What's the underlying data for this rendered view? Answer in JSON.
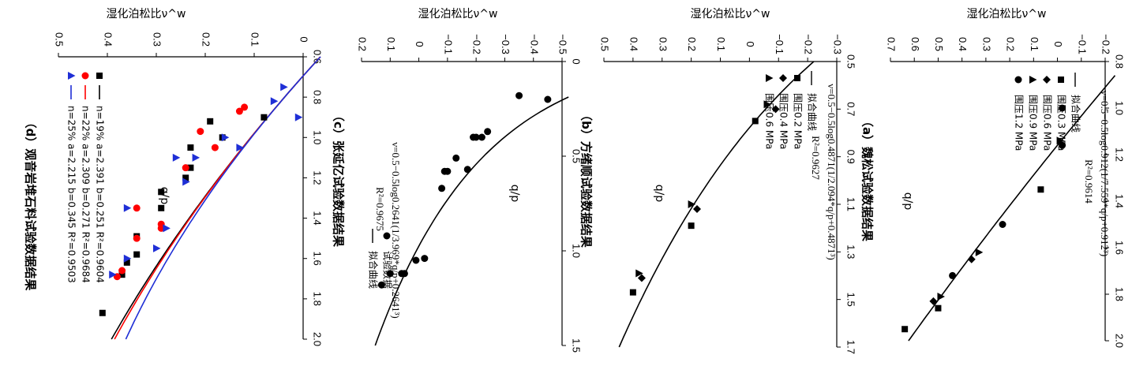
{
  "chart_data": [
    {
      "id": "a",
      "type": "scatter",
      "caption": "（a）魏松试验数据结果",
      "xlabel": "q/p",
      "ylabel": "湿化泊松比ν^w",
      "xlim": [
        0.8,
        2.0
      ],
      "xticks": [
        "0.8",
        "1.0",
        "1.2",
        "1.4",
        "1.6",
        "1.8",
        "2.0"
      ],
      "ylim": [
        -0.2,
        0.7
      ],
      "yticks": [
        "−0.2",
        "−0.1",
        "0",
        "0.1",
        "0.2",
        "0.3",
        "0.4",
        "0.5",
        "0.6",
        "0.7"
      ],
      "equation": "ν=0.5−0.5log0.912(1/7.559*q/p+0.912³)",
      "r2": "R²=0.9614",
      "legend": [
        {
          "marker": "line",
          "label": "拟合曲线"
        },
        {
          "marker": "square",
          "label": "围压0.3 MPa"
        },
        {
          "marker": "diamond",
          "label": "围压0.6 MPa"
        },
        {
          "marker": "triangle",
          "label": "围压0.9 MPa"
        },
        {
          "marker": "circle",
          "label": "围压1.2 MPa"
        }
      ],
      "series": [
        {
          "name": "围压0.3 MPa",
          "marker": "square",
          "points": [
            [
              1.35,
              0.07
            ],
            [
              1.86,
              0.5
            ],
            [
              1.95,
              0.64
            ]
          ]
        },
        {
          "name": "围压0.6 MPa",
          "marker": "diamond",
          "points": [
            [
              1.65,
              0.36
            ],
            [
              1.83,
              0.52
            ]
          ]
        },
        {
          "name": "围压0.9 MPa",
          "marker": "triangle",
          "points": [
            [
              1.14,
              -0.01
            ],
            [
              1.62,
              0.33
            ],
            [
              1.81,
              0.49
            ]
          ]
        },
        {
          "name": "围压1.2 MPa",
          "marker": "circle",
          "points": [
            [
              1.0,
              -0.02
            ],
            [
              1.16,
              -0.02
            ],
            [
              1.5,
              0.23
            ],
            [
              1.72,
              0.44
            ]
          ]
        }
      ],
      "fit": {
        "k": 7.559,
        "c": 0.912
      }
    },
    {
      "id": "b",
      "type": "scatter",
      "caption": "（b）方绪顺试验数据结果",
      "xlabel": "q/p",
      "ylabel": "湿化泊松比ν^w",
      "xlim": [
        0.5,
        1.7
      ],
      "xticks": [
        "0.5",
        "0.7",
        "0.9",
        "1.1",
        "1.3",
        "1.5",
        "1.7"
      ],
      "ylim": [
        -0.3,
        0.5
      ],
      "yticks": [
        "−0.3",
        "−0.2",
        "−0.1",
        "0",
        "0.1",
        "0.2",
        "0.3",
        "0.4",
        "0.5"
      ],
      "equation": "ν=0.5−0.5log0.4871(1/2.094*q/p+0.4871³)",
      "r2": "R²=0.9627",
      "legend": [
        {
          "marker": "line",
          "label": "拟合曲线"
        },
        {
          "marker": "square",
          "label": "围压0.2 MPa"
        },
        {
          "marker": "diamond",
          "label": "围压0.4 MPa"
        },
        {
          "marker": "triangle",
          "label": "围压0.6 MPa"
        }
      ],
      "series": [
        {
          "name": "围压0.2 MPa",
          "marker": "square",
          "points": [
            [
              0.75,
              -0.02
            ],
            [
              1.19,
              0.2
            ],
            [
              1.47,
              0.4
            ]
          ]
        },
        {
          "name": "围压0.4 MPa",
          "marker": "diamond",
          "points": [
            [
              0.7,
              -0.09
            ],
            [
              1.12,
              0.18
            ],
            [
              1.41,
              0.37
            ]
          ]
        },
        {
          "name": "围压0.6 MPa",
          "marker": "triangle",
          "points": [
            [
              0.68,
              -0.06
            ],
            [
              1.1,
              0.2
            ],
            [
              1.39,
              0.38
            ]
          ]
        }
      ],
      "fit": {
        "k": 2.094,
        "c": 0.4871
      }
    },
    {
      "id": "c",
      "type": "scatter",
      "caption": "（c）张延亿试验数据结果",
      "xlabel": "q/p",
      "ylabel": "湿化泊松比ν^w",
      "xlim": [
        0,
        1.5
      ],
      "xticks": [
        "0",
        "0.5",
        "1.0",
        "1.5"
      ],
      "ylim": [
        -0.5,
        0.2
      ],
      "yticks": [
        "−0.5",
        "−0.4",
        "−0.3",
        "−0.2",
        "−0.1",
        "0",
        "0.1",
        "0.2"
      ],
      "equation": "ν=0.5−0.5log0.2641(1/3.969*q/p+0.2641³)",
      "r2": "R²=0.9675",
      "legend": [
        {
          "marker": "circle",
          "label": "试验数据"
        },
        {
          "marker": "line",
          "label": "拟合曲线"
        }
      ],
      "series": [
        {
          "name": "试验数据",
          "marker": "circle",
          "points": [
            [
              0.2,
              -0.45
            ],
            [
              0.18,
              -0.35
            ],
            [
              0.37,
              -0.24
            ],
            [
              0.4,
              -0.22
            ],
            [
              0.4,
              -0.2
            ],
            [
              0.4,
              -0.19
            ],
            [
              0.51,
              -0.13
            ],
            [
              0.57,
              -0.17
            ],
            [
              0.58,
              -0.1
            ],
            [
              0.58,
              -0.09
            ],
            [
              0.67,
              -0.08
            ],
            [
              1.04,
              -0.02
            ],
            [
              1.05,
              0.01
            ],
            [
              1.12,
              0.05
            ],
            [
              1.12,
              0.06
            ],
            [
              1.12,
              0.1
            ],
            [
              1.18,
              0.13
            ]
          ]
        }
      ],
      "fit": {
        "k": 3.969,
        "c": 0.2641
      }
    },
    {
      "id": "d",
      "type": "scatter",
      "caption": "（d）观音岩堆石料试验数据结果",
      "xlabel": "q/p",
      "ylabel": "湿化泊松比ν^w",
      "xlim": [
        0.6,
        2.0
      ],
      "xticks": [
        "0.6",
        "0.8",
        "1.0",
        "1.2",
        "1.4",
        "1.6",
        "1.8",
        "2.0"
      ],
      "ylim": [
        0,
        0.5
      ],
      "yticks": [
        "0",
        "0.1",
        "0.2",
        "0.3",
        "0.4",
        "0.5"
      ],
      "legend": [
        {
          "marker": "square",
          "color": "#000000",
          "label": "n=19% a=2.391 b=0.251 R²=0.9604"
        },
        {
          "marker": "circle",
          "color": "#ff0000",
          "label": "n=22% a=2.309 b=0.271 R²=0.9684"
        },
        {
          "marker": "triangle",
          "color": "#1f2fd6",
          "label": "n=25% a=2.215 b=0.345 R²=0.9503"
        }
      ],
      "series": [
        {
          "name": "n=19%",
          "marker": "square",
          "color": "#000000",
          "points": [
            [
              0.9,
              0.08
            ],
            [
              0.92,
              0.19
            ],
            [
              1.0,
              0.165
            ],
            [
              1.05,
              0.23
            ],
            [
              1.15,
              0.23
            ],
            [
              1.2,
              0.24
            ],
            [
              1.27,
              0.29
            ],
            [
              1.35,
              0.29
            ],
            [
              1.49,
              0.34
            ],
            [
              1.58,
              0.34
            ],
            [
              1.62,
              0.36
            ],
            [
              1.68,
              0.37
            ],
            [
              1.87,
              0.41
            ]
          ]
        },
        {
          "name": "n=22%",
          "marker": "circle",
          "color": "#ff0000",
          "points": [
            [
              0.85,
              0.12
            ],
            [
              0.87,
              0.13
            ],
            [
              0.97,
              0.21
            ],
            [
              1.05,
              0.18
            ],
            [
              1.15,
              0.24
            ],
            [
              1.35,
              0.34
            ],
            [
              1.43,
              0.29
            ],
            [
              1.45,
              0.29
            ],
            [
              1.5,
              0.34
            ],
            [
              1.66,
              0.37
            ],
            [
              1.69,
              0.38
            ]
          ]
        },
        {
          "name": "n=25%",
          "marker": "triangle",
          "color": "#1f2fd6",
          "points": [
            [
              0.75,
              0.04
            ],
            [
              0.82,
              0.06
            ],
            [
              0.9,
              0.01
            ],
            [
              1.0,
              0.16
            ],
            [
              1.05,
              0.13
            ],
            [
              1.1,
              0.26
            ],
            [
              1.1,
              0.22
            ],
            [
              1.22,
              0.24
            ],
            [
              1.35,
              0.36
            ],
            [
              1.45,
              0.28
            ],
            [
              1.55,
              0.3
            ],
            [
              1.68,
              0.39
            ],
            [
              1.6,
              0.36
            ]
          ]
        }
      ],
      "fits": [
        {
          "color": "#000000",
          "a": 2.391,
          "b": 0.251
        },
        {
          "color": "#ff0000",
          "a": 2.309,
          "b": 0.271
        },
        {
          "color": "#1f2fd6",
          "a": 2.215,
          "b": 0.345
        }
      ]
    }
  ]
}
